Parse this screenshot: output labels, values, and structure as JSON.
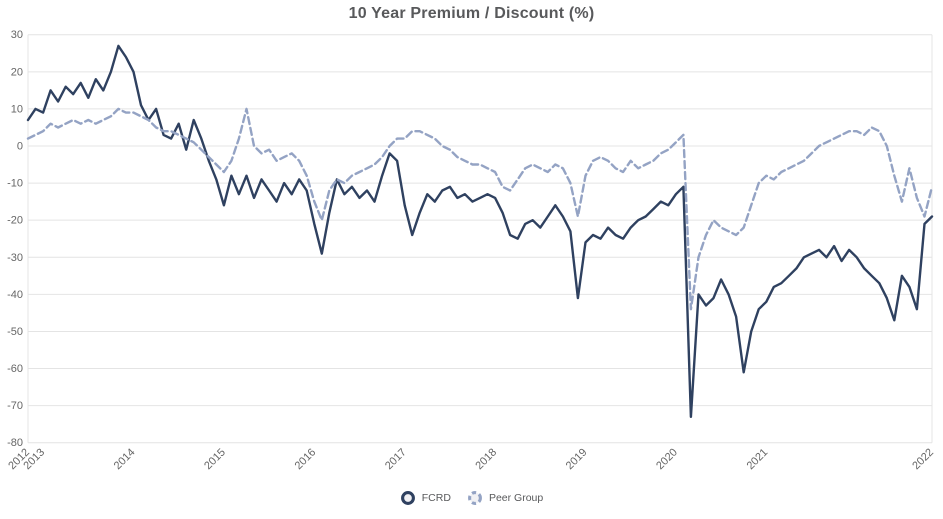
{
  "chart": {
    "title": "10 Year Premium / Discount (%)"
  },
  "style": {
    "background": "#FFFFFF",
    "title_color": "#58595B",
    "axis_text_color": "#666666",
    "grid_color": "#E4E4E4",
    "legend_text_color": "#58595B",
    "legend_marker_fill": "#F1F1F4"
  },
  "chart_data": {
    "type": "line",
    "title": "10 Year Premium / Discount (%)",
    "xlabel": "",
    "ylabel": "",
    "ylim": [
      -80,
      30
    ],
    "grid": "horizontal",
    "legend_position": "bottom-center",
    "x_unit": "month",
    "x": [
      "2012-11",
      "2012-12",
      "2013-01",
      "2013-02",
      "2013-03",
      "2013-04",
      "2013-05",
      "2013-06",
      "2013-07",
      "2013-08",
      "2013-09",
      "2013-10",
      "2013-11",
      "2013-12",
      "2014-01",
      "2014-02",
      "2014-03",
      "2014-04",
      "2014-05",
      "2014-06",
      "2014-07",
      "2014-08",
      "2014-09",
      "2014-10",
      "2014-11",
      "2014-12",
      "2015-01",
      "2015-02",
      "2015-03",
      "2015-04",
      "2015-05",
      "2015-06",
      "2015-07",
      "2015-08",
      "2015-09",
      "2015-10",
      "2015-11",
      "2015-12",
      "2016-01",
      "2016-02",
      "2016-03",
      "2016-04",
      "2016-05",
      "2016-06",
      "2016-07",
      "2016-08",
      "2016-09",
      "2016-10",
      "2016-11",
      "2016-12",
      "2017-01",
      "2017-02",
      "2017-03",
      "2017-04",
      "2017-05",
      "2017-06",
      "2017-07",
      "2017-08",
      "2017-09",
      "2017-10",
      "2017-11",
      "2017-12",
      "2018-01",
      "2018-02",
      "2018-03",
      "2018-04",
      "2018-05",
      "2018-06",
      "2018-07",
      "2018-08",
      "2018-09",
      "2018-10",
      "2018-11",
      "2018-12",
      "2019-01",
      "2019-02",
      "2019-03",
      "2019-04",
      "2019-05",
      "2019-06",
      "2019-07",
      "2019-08",
      "2019-09",
      "2019-10",
      "2019-11",
      "2019-12",
      "2020-01",
      "2020-02",
      "2020-03",
      "2020-04",
      "2020-05",
      "2020-06",
      "2020-07",
      "2020-08",
      "2020-09",
      "2020-10",
      "2020-11",
      "2020-12",
      "2021-01",
      "2021-02",
      "2021-03",
      "2021-04",
      "2021-05",
      "2021-06",
      "2021-07",
      "2021-08",
      "2021-09",
      "2021-10",
      "2021-11",
      "2021-12",
      "2022-01",
      "2022-02",
      "2022-03",
      "2022-04",
      "2022-05",
      "2022-06",
      "2022-07",
      "2022-08",
      "2022-09",
      "2022-10",
      "2022-11"
    ],
    "series": [
      {
        "name": "FCRD",
        "color": "#2F4160",
        "line_style": "solid",
        "values": [
          7,
          10,
          9,
          15,
          12,
          16,
          14,
          17,
          13,
          18,
          15,
          20,
          27,
          24,
          20,
          11,
          7,
          10,
          3,
          2,
          6,
          -1,
          7,
          2,
          -4,
          -9,
          -16,
          -8,
          -13,
          -8,
          -14,
          -9,
          -12,
          -15,
          -10,
          -13,
          -9,
          -12,
          -21,
          -29,
          -18,
          -9,
          -13,
          -11,
          -14,
          -12,
          -15,
          -8,
          -2,
          -4,
          -16,
          -24,
          -18,
          -13,
          -15,
          -12,
          -11,
          -14,
          -13,
          -15,
          -14,
          -13,
          -14,
          -18,
          -24,
          -25,
          -21,
          -20,
          -22,
          -19,
          -16,
          -19,
          -23,
          -41,
          -26,
          -24,
          -25,
          -22,
          -24,
          -25,
          -22,
          -20,
          -19,
          -17,
          -15,
          -16,
          -13,
          -11,
          -73,
          -40,
          -43,
          -41,
          -36,
          -40,
          -46,
          -61,
          -50,
          -44,
          -42,
          -38,
          -37,
          -35,
          -33,
          -30,
          -29,
          -28,
          -30,
          -27,
          -31,
          -28,
          -30,
          -33,
          -35,
          -37,
          -41,
          -47,
          -35,
          -38,
          -44,
          -21,
          -19
        ]
      },
      {
        "name": "Peer Group",
        "color": "#94A3C4",
        "line_style": "dashed",
        "values": [
          2,
          3,
          4,
          6,
          5,
          6,
          7,
          6,
          7,
          6,
          7,
          8,
          10,
          9,
          9,
          8,
          7,
          5,
          4,
          4,
          3,
          2,
          1,
          -1,
          -3,
          -5,
          -7,
          -4,
          2,
          10,
          0,
          -2,
          -1,
          -4,
          -3,
          -2,
          -4,
          -8,
          -15,
          -20,
          -12,
          -9,
          -10,
          -8,
          -7,
          -6,
          -5,
          -3,
          0,
          2,
          2,
          4,
          4,
          3,
          2,
          0,
          -1,
          -3,
          -4,
          -5,
          -5,
          -6,
          -7,
          -11,
          -12,
          -9,
          -6,
          -5,
          -6,
          -7,
          -5,
          -6,
          -10,
          -19,
          -8,
          -4,
          -3,
          -4,
          -6,
          -7,
          -4,
          -6,
          -5,
          -4,
          -2,
          -1,
          1,
          3,
          -44,
          -30,
          -24,
          -20,
          -22,
          -23,
          -24,
          -22,
          -16,
          -10,
          -8,
          -9,
          -7,
          -6,
          -5,
          -4,
          -2,
          0,
          1,
          2,
          3,
          4,
          4,
          3,
          5,
          4,
          0,
          -8,
          -15,
          -6,
          -14,
          -19,
          -11
        ]
      }
    ],
    "y_ticks": [
      30,
      20,
      10,
      0,
      -10,
      -20,
      -30,
      -40,
      -50,
      -60,
      -70,
      -80
    ],
    "x_tick_labels": [
      {
        "label": "2012",
        "index": 0
      },
      {
        "label": "2013",
        "index": 2
      },
      {
        "label": "2014",
        "index": 14
      },
      {
        "label": "2015",
        "index": 26
      },
      {
        "label": "2016",
        "index": 38
      },
      {
        "label": "2017",
        "index": 50
      },
      {
        "label": "2018",
        "index": 62
      },
      {
        "label": "2019",
        "index": 74
      },
      {
        "label": "2020",
        "index": 86
      },
      {
        "label": "2021",
        "index": 98
      },
      {
        "label": "2022",
        "index": 120
      }
    ]
  }
}
